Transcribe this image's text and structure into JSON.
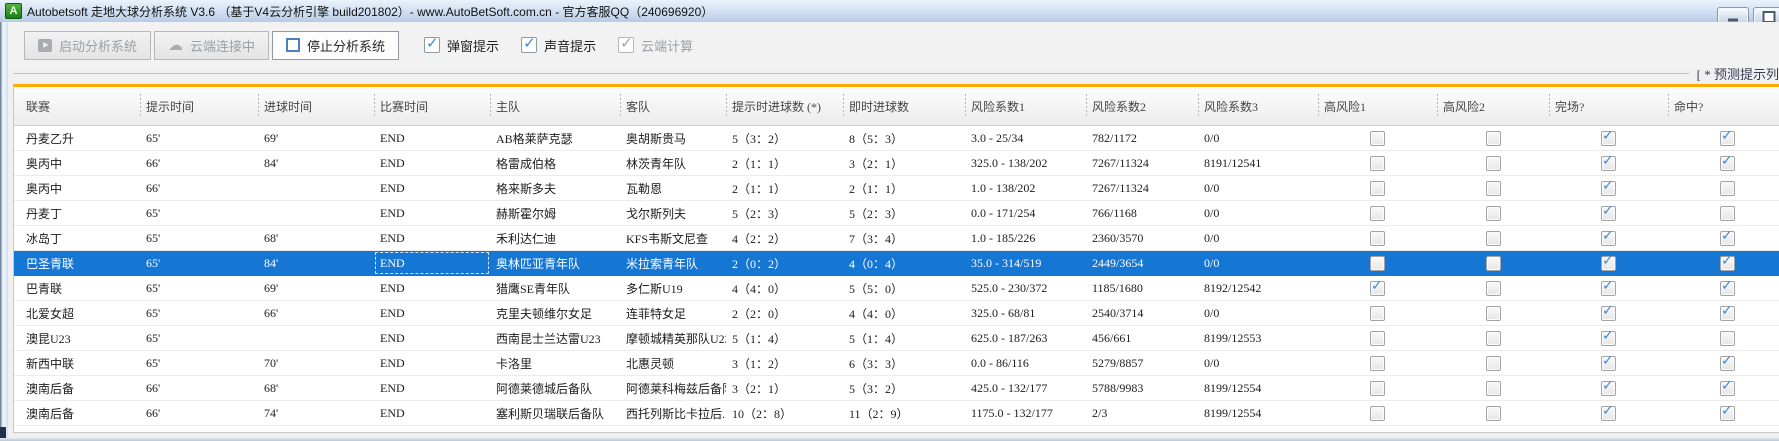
{
  "window": {
    "app_icon_letter": "A",
    "title": "Autobetsoft 走地大球分析系统 V3.6 （基于V4云分析引擎 build201802）- www.AutoBetSoft.com.cn - 官方客服QQ（240696920）"
  },
  "toolbar": {
    "start_button": "启动分析系统",
    "cloud_button": "云端连接中",
    "stop_button": "停止分析系统",
    "checkboxes": [
      {
        "label": "弹窗提示",
        "checked": true,
        "enabled": true
      },
      {
        "label": "声音提示",
        "checked": true,
        "enabled": true
      },
      {
        "label": "云端计算",
        "checked": true,
        "enabled": false
      }
    ],
    "icons": {
      "play": "play-icon",
      "cloud": "☁",
      "stop": "stop-icon"
    }
  },
  "panel": {
    "caption": "[ * 预测提示列",
    "accent_color": "#FFAA00",
    "selection_color": "#1576D4"
  },
  "table": {
    "columns": [
      "联赛",
      "提示时间",
      "进球时间",
      "比赛时间",
      "主队",
      "客队",
      "提示时进球数 (*)",
      "即时进球数",
      "风险系数1",
      "风险系数2",
      "风险系数3",
      "高风险1",
      "高风险2",
      "完场?",
      "命中?"
    ],
    "rows": [
      {
        "league": "丹麦乙升",
        "tip_time": "65'",
        "goal_time": "69'",
        "match_time": "END",
        "home": "AB格莱萨克瑟",
        "away": "奥胡斯贵马",
        "tip_goals": "5（3：2）",
        "live_goals": "8（5：3）",
        "risk1": "3.0 - 25/34",
        "risk2": "782/1172",
        "risk3": "0/0",
        "high_risk1": false,
        "high_risk2": false,
        "finished": true,
        "hit": true,
        "selected": false
      },
      {
        "league": "奥丙中",
        "tip_time": "66'",
        "goal_time": "84'",
        "match_time": "END",
        "home": "格雷成伯格",
        "away": "林茨青年队",
        "tip_goals": "2（1：1）",
        "live_goals": "3（2：1）",
        "risk1": "325.0 - 138/202",
        "risk2": "7267/11324",
        "risk3": "8191/12541",
        "high_risk1": false,
        "high_risk2": false,
        "finished": true,
        "hit": true,
        "selected": false
      },
      {
        "league": "奥丙中",
        "tip_time": "66'",
        "goal_time": "",
        "match_time": "END",
        "home": "格来斯多夫",
        "away": "瓦勒恩",
        "tip_goals": "2（1：1）",
        "live_goals": "2（1：1）",
        "risk1": "1.0 - 138/202",
        "risk2": "7267/11324",
        "risk3": "0/0",
        "high_risk1": false,
        "high_risk2": false,
        "finished": true,
        "hit": false,
        "selected": false
      },
      {
        "league": "丹麦丁",
        "tip_time": "65'",
        "goal_time": "",
        "match_time": "END",
        "home": "赫斯霍尔姆",
        "away": "戈尔斯列夫",
        "tip_goals": "5（2：3）",
        "live_goals": "5（2：3）",
        "risk1": "0.0 - 171/254",
        "risk2": "766/1168",
        "risk3": "0/0",
        "high_risk1": false,
        "high_risk2": false,
        "finished": true,
        "hit": false,
        "selected": false
      },
      {
        "league": "冰岛丁",
        "tip_time": "65'",
        "goal_time": "68'",
        "match_time": "END",
        "home": "禾利达仁迪",
        "away": "KFS韦斯文尼查",
        "tip_goals": "4（2：2）",
        "live_goals": "7（3：4）",
        "risk1": "1.0 - 185/226",
        "risk2": "2360/3570",
        "risk3": "0/0",
        "high_risk1": false,
        "high_risk2": false,
        "finished": true,
        "hit": true,
        "selected": false
      },
      {
        "league": "巴圣青联",
        "tip_time": "65'",
        "goal_time": "84'",
        "match_time": "END",
        "home": "奥林匹亚青年队",
        "away": "米拉索青年队",
        "tip_goals": "2（0：2）",
        "live_goals": "4（0：4）",
        "risk1": "35.0 - 314/519",
        "risk2": "2449/3654",
        "risk3": "0/0",
        "high_risk1": false,
        "high_risk2": false,
        "finished": true,
        "hit": true,
        "selected": true
      },
      {
        "league": "巴青联",
        "tip_time": "65'",
        "goal_time": "69'",
        "match_time": "END",
        "home": "猎鹰SE青年队",
        "away": "多仁斯U19",
        "tip_goals": "4（4：0）",
        "live_goals": "5（5：0）",
        "risk1": "525.0 - 230/372",
        "risk2": "1185/1680",
        "risk3": "8192/12542",
        "high_risk1": true,
        "high_risk2": false,
        "finished": true,
        "hit": true,
        "selected": false
      },
      {
        "league": "北爱女超",
        "tip_time": "65'",
        "goal_time": "66'",
        "match_time": "END",
        "home": "克里夫顿维尔女足",
        "away": "连菲特女足",
        "tip_goals": "2（2：0）",
        "live_goals": "4（4：0）",
        "risk1": "325.0 - 68/81",
        "risk2": "2540/3714",
        "risk3": "0/0",
        "high_risk1": false,
        "high_risk2": false,
        "finished": true,
        "hit": true,
        "selected": false
      },
      {
        "league": "澳昆U23",
        "tip_time": "65'",
        "goal_time": "",
        "match_time": "END",
        "home": "西南昆士兰达雷U23",
        "away": "摩顿城精英那队U23",
        "tip_goals": "5（1：4）",
        "live_goals": "5（1：4）",
        "risk1": "625.0 - 187/263",
        "risk2": "456/661",
        "risk3": "8199/12553",
        "high_risk1": false,
        "high_risk2": false,
        "finished": true,
        "hit": false,
        "selected": false
      },
      {
        "league": "新西中联",
        "tip_time": "65'",
        "goal_time": "70'",
        "match_time": "END",
        "home": "卡洛里",
        "away": "北惠灵顿",
        "tip_goals": "3（1：2）",
        "live_goals": "6（3：3）",
        "risk1": "0.0 - 86/116",
        "risk2": "5279/8857",
        "risk3": "0/0",
        "high_risk1": false,
        "high_risk2": false,
        "finished": true,
        "hit": true,
        "selected": false
      },
      {
        "league": "澳南后备",
        "tip_time": "66'",
        "goal_time": "68'",
        "match_time": "END",
        "home": "阿德莱德城后备队",
        "away": "阿德莱科梅兹后备队",
        "tip_goals": "3（2：1）",
        "live_goals": "5（3：2）",
        "risk1": "425.0 - 132/177",
        "risk2": "5788/9983",
        "risk3": "8199/12554",
        "high_risk1": false,
        "high_risk2": false,
        "finished": true,
        "hit": true,
        "selected": false
      },
      {
        "league": "澳南后备",
        "tip_time": "66'",
        "goal_time": "74'",
        "match_time": "END",
        "home": "塞利斯贝瑞联后备队",
        "away": "西托列斯比卡拉后...",
        "tip_goals": "10（2：8）",
        "live_goals": "11（2：9）",
        "risk1": "1175.0 - 132/177",
        "risk2": "2/3",
        "risk3": "8199/12554",
        "high_risk1": false,
        "high_risk2": false,
        "finished": true,
        "hit": true,
        "selected": false
      }
    ]
  }
}
